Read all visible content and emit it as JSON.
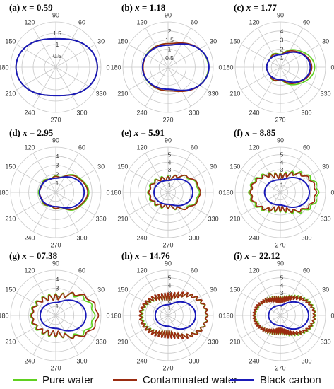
{
  "chart_data": [
    {
      "type": "polar",
      "panel": "(a)",
      "x_param": "0.59",
      "r_ticks": [
        "0.5",
        "1",
        "1.5"
      ],
      "rmax": 1.5,
      "angle_ticks": [
        "0",
        "30",
        "60",
        "90",
        "120",
        "150",
        "180",
        "210",
        "240",
        "270",
        "300",
        "330"
      ],
      "series": [
        {
          "name": "Pure water",
          "shape": {
            "base": 1.02,
            "f": 0.36,
            "b": 0.3,
            "side": 0.08,
            "lobes": 0,
            "amp": 0
          }
        },
        {
          "name": "Contaminated water",
          "shape": {
            "base": 1.02,
            "f": 0.36,
            "b": 0.3,
            "side": 0.08,
            "lobes": 0,
            "amp": 0
          }
        },
        {
          "name": "Black carbon",
          "shape": {
            "base": 1.02,
            "f": 0.36,
            "b": 0.3,
            "side": 0.08,
            "lobes": 0,
            "amp": 0
          }
        }
      ]
    },
    {
      "type": "polar",
      "panel": "(b)",
      "x_param": "1.18",
      "r_ticks": [
        "0.5",
        "1",
        "1.5",
        "2"
      ],
      "rmax": 2.3,
      "angle_ticks": [
        "0",
        "30",
        "60",
        "90",
        "120",
        "150",
        "180",
        "210",
        "240",
        "270",
        "300",
        "330"
      ],
      "series": [
        {
          "name": "Pure water",
          "shape": {
            "base": 1.25,
            "f": 0.8,
            "b": 0.05,
            "side": 0.05,
            "lobes": 0,
            "amp": 0
          }
        },
        {
          "name": "Contaminated water",
          "shape": {
            "base": 1.25,
            "f": 0.82,
            "b": 0.02,
            "side": 0.05,
            "lobes": 0,
            "amp": 0
          }
        },
        {
          "name": "Black carbon",
          "shape": {
            "base": 1.2,
            "f": 0.88,
            "b": 0.1,
            "side": 0.08,
            "lobes": 0,
            "amp": 0
          }
        }
      ]
    },
    {
      "type": "polar",
      "panel": "(c)",
      "x_param": "1.77",
      "r_ticks": [
        "1",
        "2",
        "3",
        "4"
      ],
      "rmax": 4,
      "angle_ticks": [
        "0",
        "30",
        "60",
        "90",
        "120",
        "150",
        "180",
        "210",
        "240",
        "270",
        "300",
        "330"
      ],
      "series": [
        {
          "name": "Pure water",
          "shape": {
            "base": 1.35,
            "f": 1.65,
            "b": -0.15,
            "side": 0.1,
            "lobes": 3,
            "amp": 0.1
          }
        },
        {
          "name": "Contaminated water",
          "shape": {
            "base": 1.3,
            "f": 1.45,
            "b": -0.1,
            "side": 0.1,
            "lobes": 3,
            "amp": 0.08
          }
        },
        {
          "name": "Black carbon",
          "shape": {
            "base": 1.25,
            "f": 1.4,
            "b": -0.05,
            "side": 0.15,
            "lobes": 0,
            "amp": 0
          }
        }
      ]
    },
    {
      "type": "polar",
      "panel": "(d)",
      "x_param": "2.95",
      "r_ticks": [
        "1",
        "2",
        "3",
        "4"
      ],
      "rmax": 4.3,
      "angle_ticks": [
        "0",
        "30",
        "60",
        "90",
        "120",
        "150",
        "180",
        "210",
        "240",
        "270",
        "300",
        "330"
      ],
      "series": [
        {
          "name": "Pure water",
          "shape": {
            "base": 1.55,
            "f": 1.55,
            "b": 0.05,
            "side": 0.1,
            "lobes": 4,
            "amp": 0.12
          }
        },
        {
          "name": "Contaminated water",
          "shape": {
            "base": 1.5,
            "f": 1.5,
            "b": 0.02,
            "side": 0.08,
            "lobes": 4,
            "amp": 0.1
          }
        },
        {
          "name": "Black carbon",
          "shape": {
            "base": 1.45,
            "f": 1.25,
            "b": 0.1,
            "side": 0.1,
            "lobes": 0,
            "amp": 0
          }
        }
      ]
    },
    {
      "type": "polar",
      "panel": "(e)",
      "x_param": "5.91",
      "r_ticks": [
        "1",
        "2",
        "3",
        "4",
        "5"
      ],
      "rmax": 5.3,
      "angle_ticks": [
        "0",
        "30",
        "60",
        "90",
        "120",
        "150",
        "180",
        "210",
        "240",
        "270",
        "300",
        "330"
      ],
      "series": [
        {
          "name": "Pure water",
          "shape": {
            "base": 1.75,
            "f": 1.85,
            "b": 0.55,
            "side": 0.1,
            "lobes": 8,
            "amp": 0.28
          }
        },
        {
          "name": "Contaminated water",
          "shape": {
            "base": 1.7,
            "f": 2.05,
            "b": 0.5,
            "side": 0.08,
            "lobes": 8,
            "amp": 0.22
          }
        },
        {
          "name": "Black carbon",
          "shape": {
            "base": 1.45,
            "f": 1.45,
            "b": 0.2,
            "side": 0.05,
            "lobes": 0,
            "amp": 0
          }
        }
      ]
    },
    {
      "type": "polar",
      "panel": "(f)",
      "x_param": "8.85",
      "r_ticks": [
        "1",
        "2",
        "3",
        "4",
        "5"
      ],
      "rmax": 5.3,
      "angle_ticks": [
        "0",
        "30",
        "60",
        "90",
        "120",
        "150",
        "180",
        "210",
        "240",
        "270",
        "300",
        "330"
      ],
      "series": [
        {
          "name": "Pure water",
          "shape": {
            "base": 2.0,
            "f": 2.4,
            "b": 1.6,
            "side": 0.05,
            "lobes": 12,
            "amp": 0.35
          }
        },
        {
          "name": "Contaminated water",
          "shape": {
            "base": 1.95,
            "f": 2.2,
            "b": 1.5,
            "side": 0.05,
            "lobes": 12,
            "amp": 0.3
          }
        },
        {
          "name": "Black carbon",
          "shape": {
            "base": 1.5,
            "f": 1.9,
            "b": 0.35,
            "side": 0.02,
            "lobes": 0,
            "amp": 0
          }
        }
      ]
    },
    {
      "type": "polar",
      "panel": "(g)",
      "x_param": "07.38",
      "r_ticks": [
        "1",
        "2",
        "3",
        "4"
      ],
      "rmax": 4.5,
      "angle_ticks": [
        "0",
        "30",
        "60",
        "90",
        "120",
        "150",
        "180",
        "210",
        "240",
        "270",
        "300",
        "330"
      ],
      "series": [
        {
          "name": "Pure water",
          "shape": {
            "base": 1.9,
            "f": 1.9,
            "b": 0.55,
            "side": 0.05,
            "lobes": 10,
            "amp": 0.32
          }
        },
        {
          "name": "Contaminated water",
          "shape": {
            "base": 1.85,
            "f": 2.3,
            "b": 0.5,
            "side": 0.05,
            "lobes": 10,
            "amp": 0.28
          }
        },
        {
          "name": "Black carbon",
          "shape": {
            "base": 1.3,
            "f": 1.7,
            "b": 0.25,
            "side": 0.02,
            "lobes": 0,
            "amp": 0
          }
        }
      ]
    },
    {
      "type": "polar",
      "panel": "(h)",
      "x_param": "14.76",
      "r_ticks": [
        "1",
        "2",
        "3",
        "4",
        "5"
      ],
      "rmax": 6,
      "angle_ticks": [
        "0",
        "30",
        "60",
        "90",
        "120",
        "150",
        "180",
        "210",
        "240",
        "270",
        "300",
        "330"
      ],
      "series": [
        {
          "name": "Pure water",
          "shape": {
            "base": 2.5,
            "f": 2.6,
            "b": 1.0,
            "side": 0.05,
            "lobes": 22,
            "amp": 0.45
          }
        },
        {
          "name": "Contaminated water",
          "shape": {
            "base": 2.55,
            "f": 2.6,
            "b": 1.1,
            "side": 0.05,
            "lobes": 22,
            "amp": 0.5
          }
        },
        {
          "name": "Black carbon",
          "shape": {
            "base": 1.45,
            "f": 2.2,
            "b": 0.25,
            "side": 0.02,
            "lobes": 0,
            "amp": 0
          }
        }
      ]
    },
    {
      "type": "polar",
      "panel": "(i)",
      "x_param": "22.12",
      "r_ticks": [
        "1",
        "2",
        "3",
        "4",
        "5"
      ],
      "rmax": 6,
      "angle_ticks": [
        "0",
        "30",
        "60",
        "90",
        "120",
        "150",
        "180",
        "210",
        "240",
        "270",
        "300",
        "330"
      ],
      "series": [
        {
          "name": "Pure water",
          "shape": {
            "base": 2.2,
            "f": 2.4,
            "b": 1.2,
            "side": 0.04,
            "lobes": 30,
            "amp": 0.4
          }
        },
        {
          "name": "Contaminated water",
          "shape": {
            "base": 2.1,
            "f": 2.4,
            "b": 1.4,
            "side": 0.04,
            "lobes": 30,
            "amp": 0.4
          }
        },
        {
          "name": "Black carbon",
          "shape": {
            "base": 1.35,
            "f": 2.4,
            "b": 0.2,
            "side": 0.02,
            "lobes": 0,
            "amp": 0
          }
        }
      ]
    }
  ],
  "legend": {
    "items": [
      {
        "label": "Pure water",
        "color": "#5fd01f"
      },
      {
        "label": "Contaminated water",
        "color": "#9a2b10"
      },
      {
        "label": "Black carbon",
        "color": "#1a1ab8"
      }
    ]
  },
  "colors": {
    "grid": "#c8c8c8",
    "axis_text": "#333333"
  }
}
